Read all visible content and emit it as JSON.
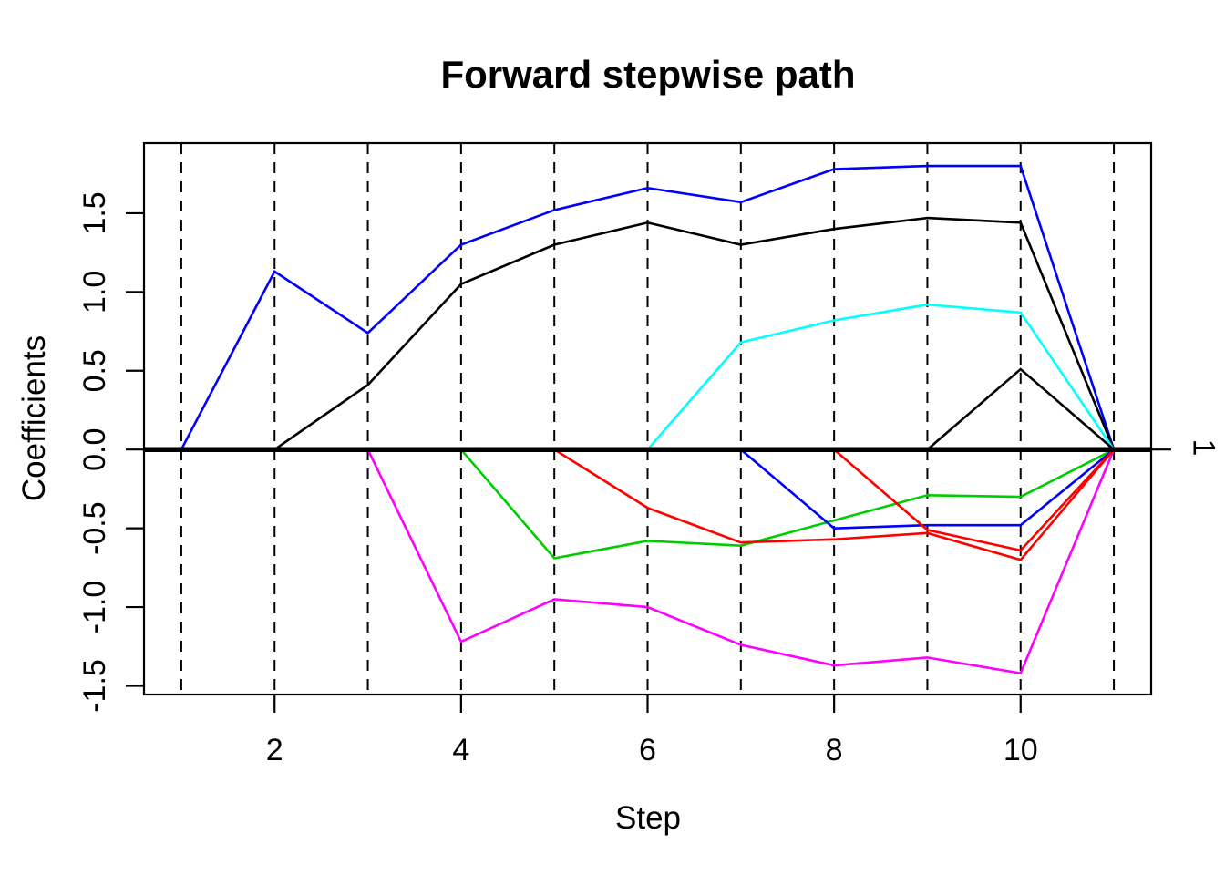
{
  "figure": {
    "background": "#ffffff",
    "frame_color": "#000000"
  },
  "chart_data": {
    "type": "line",
    "title": "Forward stepwise path",
    "xlabel": "Step",
    "ylabel": "Coefficients",
    "right_label": "1",
    "x": [
      1,
      2,
      3,
      4,
      5,
      6,
      7,
      8,
      9,
      10,
      11
    ],
    "xlim": [
      0.6,
      11.4
    ],
    "ylim": [
      -1.555,
      1.945
    ],
    "x_ticks": [
      2,
      4,
      6,
      8,
      10
    ],
    "x_tick_labels": [
      "2",
      "4",
      "6",
      "8",
      "10"
    ],
    "y_ticks": [
      1.5,
      1.0,
      0.5,
      0.0,
      -0.5,
      -1.0,
      -1.5
    ],
    "y_tick_labels": [
      "1.5",
      "1.0",
      "0.5",
      "0.0",
      "-0.5",
      "-1.0",
      "-1.5"
    ],
    "grid": "vertical dashed line at every step 1-11",
    "grid_steps": [
      1,
      2,
      3,
      4,
      5,
      6,
      7,
      8,
      9,
      10,
      11
    ],
    "zero_line": {
      "at": 0.0,
      "color": "#000000"
    },
    "right_axis": {
      "tick_at": 0.0,
      "label": "1"
    },
    "legend": "none",
    "series": [
      {
        "name": "path-blue-1",
        "color": "#0000FF",
        "values": [
          0,
          1.13,
          0.74,
          1.3,
          1.52,
          1.66,
          1.57,
          1.78,
          1.8,
          1.8,
          0
        ]
      },
      {
        "name": "path-black-1",
        "color": "#000000",
        "values": [
          null,
          0,
          0.41,
          1.05,
          1.3,
          1.44,
          1.3,
          1.4,
          1.47,
          1.44,
          0
        ]
      },
      {
        "name": "path-magenta-1",
        "color": "#FF00FF",
        "values": [
          null,
          null,
          0,
          -1.22,
          -0.95,
          -1.0,
          -1.24,
          -1.37,
          -1.32,
          -1.42,
          0
        ]
      },
      {
        "name": "path-green-1",
        "color": "#00CD00",
        "values": [
          null,
          null,
          null,
          0,
          -0.69,
          -0.58,
          -0.61,
          -0.45,
          -0.29,
          -0.3,
          0
        ]
      },
      {
        "name": "path-red-1",
        "color": "#FF0000",
        "values": [
          null,
          null,
          null,
          null,
          0,
          -0.37,
          -0.59,
          -0.57,
          -0.53,
          -0.7,
          0
        ]
      },
      {
        "name": "path-cyan-1",
        "color": "#00FFFF",
        "values": [
          null,
          null,
          null,
          null,
          null,
          0,
          0.68,
          0.82,
          0.92,
          0.87,
          0
        ]
      },
      {
        "name": "path-blue-2",
        "color": "#0000FF",
        "values": [
          null,
          null,
          null,
          null,
          null,
          null,
          0,
          -0.5,
          -0.48,
          -0.48,
          0
        ]
      },
      {
        "name": "path-red-2",
        "color": "#FF0000",
        "values": [
          null,
          null,
          null,
          null,
          null,
          null,
          null,
          0,
          -0.51,
          -0.64,
          0
        ]
      },
      {
        "name": "path-black-2",
        "color": "#000000",
        "values": [
          null,
          null,
          null,
          null,
          null,
          null,
          null,
          null,
          0,
          0.51,
          0
        ]
      }
    ]
  }
}
